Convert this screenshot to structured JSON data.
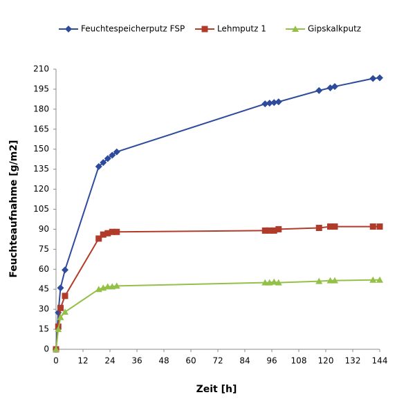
{
  "chart_data": {
    "type": "line",
    "x_label": "Zeit [h]",
    "y_label": "Feuchteaufnahme [g/m2]",
    "x": [
      0,
      1,
      2,
      4,
      19,
      21,
      23,
      25,
      27,
      93,
      95,
      97,
      99,
      117,
      122,
      124,
      141,
      144
    ],
    "series": [
      {
        "name": "Feuchtespeicherputz FSP",
        "color": "#2e4b9b",
        "marker": "diamond",
        "values": [
          0,
          27.5,
          46,
          59.5,
          137,
          140,
          143,
          145.5,
          148,
          184,
          184.5,
          185,
          185.5,
          194,
          196,
          197,
          203,
          203.5
        ]
      },
      {
        "name": "Lehmputz 1",
        "color": "#b13b2b",
        "marker": "square",
        "values": [
          0,
          17,
          31,
          40,
          83,
          86,
          87,
          88,
          88,
          89,
          89,
          89,
          90,
          91,
          92,
          92,
          92,
          92
        ]
      },
      {
        "name": "Gipskalkputz",
        "color": "#93c047",
        "marker": "triangle",
        "values": [
          0,
          15,
          24,
          28,
          45,
          46,
          47,
          47,
          47.5,
          50,
          50,
          50.5,
          50,
          51,
          51.5,
          51.5,
          52,
          52
        ]
      }
    ],
    "xlim": [
      0,
      144
    ],
    "xticks": [
      0,
      12,
      24,
      36,
      48,
      60,
      72,
      84,
      96,
      108,
      120,
      132,
      144
    ],
    "ylim": [
      0,
      210
    ],
    "yticks": [
      0,
      15,
      30,
      45,
      60,
      75,
      90,
      105,
      120,
      135,
      150,
      165,
      180,
      195,
      210
    ],
    "grid": false,
    "legend": "top"
  }
}
